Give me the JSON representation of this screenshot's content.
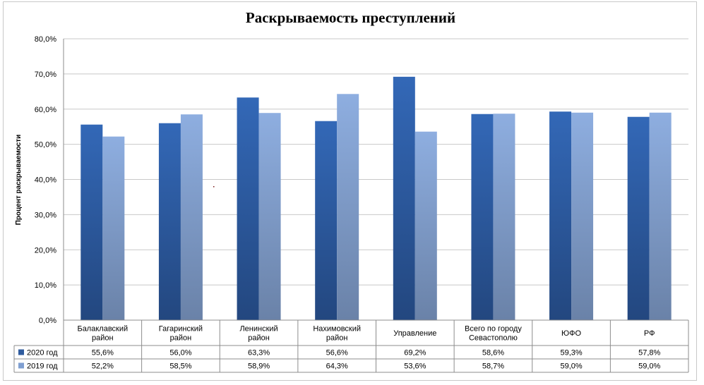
{
  "chart_data": {
    "type": "bar",
    "title": "Раскрываемость преступлений",
    "ylabel": "Процент раскрываемости",
    "xlabel": "",
    "ylim": [
      0,
      80
    ],
    "yticks": [
      "0,0%",
      "10,0%",
      "20,0%",
      "30,0%",
      "40,0%",
      "50,0%",
      "60,0%",
      "70,0%",
      "80,0%"
    ],
    "grid": true,
    "legend_placement": "data-table",
    "categories": [
      [
        "Балаклавский",
        "район"
      ],
      [
        "Гагаринский",
        "район"
      ],
      [
        "Ленинский",
        "район"
      ],
      [
        "Нахимовский",
        "район"
      ],
      [
        "Управление"
      ],
      [
        "Всего по городу",
        "Севастополю"
      ],
      [
        "ЮФО"
      ],
      [
        "РФ"
      ]
    ],
    "series": [
      {
        "name": "2020 год",
        "color": "#2f5b9e",
        "values": [
          55.6,
          56.0,
          63.3,
          56.6,
          69.2,
          58.6,
          59.3,
          57.8
        ],
        "labels": [
          "55,6%",
          "56,0%",
          "63,3%",
          "56,6%",
          "69,2%",
          "58,6%",
          "59,3%",
          "57,8%"
        ]
      },
      {
        "name": "2019 год",
        "color": "#7f9fd1",
        "values": [
          52.2,
          58.5,
          58.9,
          64.3,
          53.6,
          58.7,
          59.0,
          59.0
        ],
        "labels": [
          "52,2%",
          "58,5%",
          "58,9%",
          "64,3%",
          "53,6%",
          "58,7%",
          "59,0%",
          "59,0%"
        ]
      }
    ]
  }
}
